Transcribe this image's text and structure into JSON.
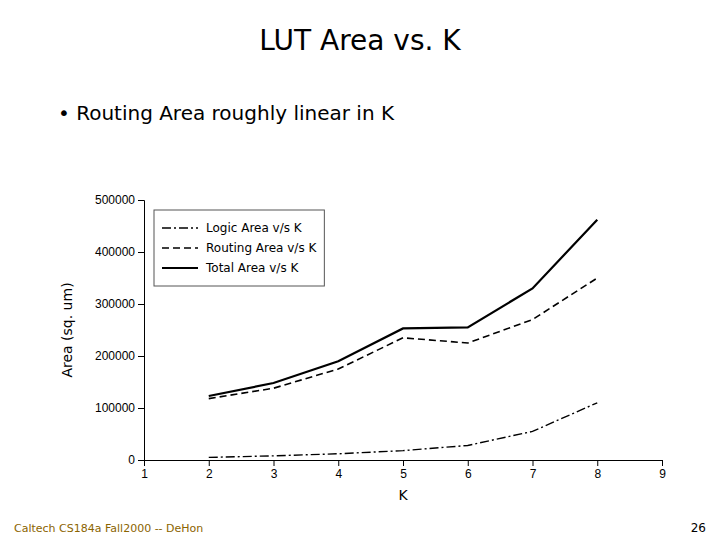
{
  "chart_data": {
    "type": "line",
    "title": "LUT Area vs. K",
    "annotations": [
      "• Routing Area roughly linear in K",
      "Caltech CS184a Fall2000 -- DeHon",
      "26"
    ],
    "x_label": "K",
    "y_label": "Area (sq. um)",
    "x": [
      2,
      3,
      4,
      5,
      6,
      7,
      8
    ],
    "series": [
      {
        "name": "Logic Area v/s K",
        "color": "#000000",
        "line_style": "dashdot",
        "values": [
          5000,
          8000,
          12000,
          18000,
          28000,
          55000,
          110000
        ]
      },
      {
        "name": "Routing Area v/s K",
        "color": "#000000",
        "line_style": "dashed",
        "values": [
          118000,
          138000,
          175000,
          235000,
          225000,
          270000,
          350000
        ]
      },
      {
        "name": "Total Area v/s K",
        "color": "#000000",
        "line_style": "solid",
        "values": [
          123000,
          148000,
          190000,
          253000,
          255000,
          330000,
          462000
        ]
      }
    ],
    "xlim": [
      1,
      9
    ],
    "ylim": [
      0,
      500000
    ],
    "xticks": [
      1,
      2,
      3,
      4,
      5,
      6,
      7,
      8,
      9
    ],
    "yticks": [
      0,
      100000,
      200000,
      300000,
      400000,
      500000
    ],
    "grid": false,
    "legend": "upper left"
  }
}
